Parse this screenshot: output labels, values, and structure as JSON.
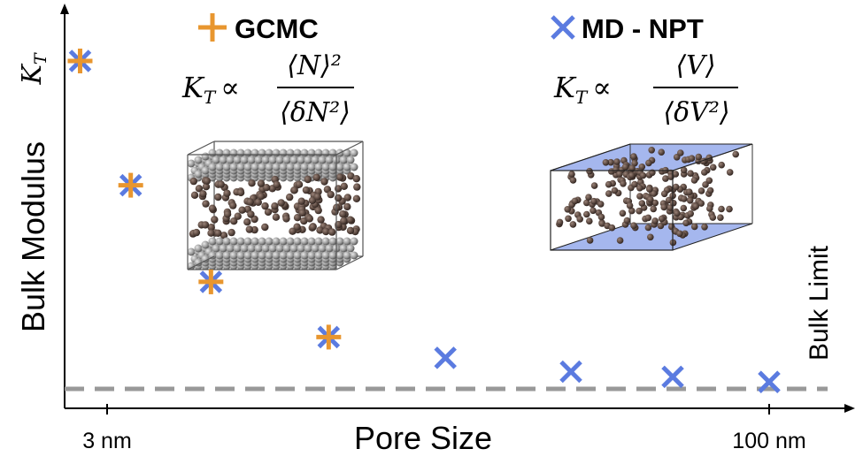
{
  "chart_data": {
    "type": "scatter",
    "xlabel": "Pore Size",
    "ylabel": "Bulk Modulus",
    "ylabel_symbol": "K_T",
    "x_scale": "log",
    "xticks": [
      {
        "value": 3,
        "label": "3 nm"
      },
      {
        "value": 100,
        "label": "100 nm"
      }
    ],
    "y_ticks": "none",
    "ylim": [
      0,
      10
    ],
    "bulk_limit": {
      "value": 0,
      "label": "Bulk Limit",
      "color": "#999999",
      "style": "dashed"
    },
    "series": [
      {
        "name": "GCMC",
        "marker": "plus",
        "color": "#E8962F",
        "formula": {
          "lhs": "K_T",
          "rel": "∝",
          "num": "⟨N⟩²",
          "den": "⟨δN²⟩"
        },
        "x": [
          2.6,
          3.4,
          5.2,
          9.7
        ],
        "y": [
          9.5,
          5.9,
          3.1,
          1.5
        ]
      },
      {
        "name": "MD - NPT",
        "marker": "x",
        "color": "#5B7BE0",
        "formula": {
          "lhs": "K_T",
          "rel": "∝",
          "num": "⟨V⟩",
          "den": "⟨δV²⟩"
        },
        "x": [
          2.6,
          3.4,
          5.2,
          9.7,
          18,
          35,
          60,
          100
        ],
        "y": [
          9.5,
          5.9,
          3.1,
          1.5,
          0.9,
          0.5,
          0.35,
          0.2
        ]
      }
    ],
    "insets": [
      {
        "name": "gcmc-slit-pore-box",
        "description": "particles between two solid walls"
      },
      {
        "name": "md-npt-bulk-box",
        "description": "particles in periodic box"
      }
    ]
  }
}
